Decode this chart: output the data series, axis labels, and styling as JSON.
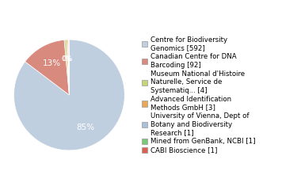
{
  "labels": [
    "Centre for Biodiversity\nGenomics [592]",
    "Canadian Centre for DNA\nBarcoding [92]",
    "Museum National d'Histoire\nNaturelle, Service de\nSystematiq... [4]",
    "Advanced Identification\nMethods GmbH [3]",
    "University of Vienna, Dept of\nBotany and Biodiversity\nResearch [1]",
    "Mined from GenBank, NCBI [1]",
    "CABI Bioscience [1]"
  ],
  "values": [
    592,
    92,
    4,
    3,
    1,
    1,
    1
  ],
  "colors": [
    "#bfcfe0",
    "#d98a7e",
    "#c8d47a",
    "#e8a85a",
    "#aabfd8",
    "#7ac87a",
    "#d96050"
  ],
  "figsize": [
    3.8,
    2.4
  ],
  "dpi": 100,
  "legend_fontsize": 6.2
}
